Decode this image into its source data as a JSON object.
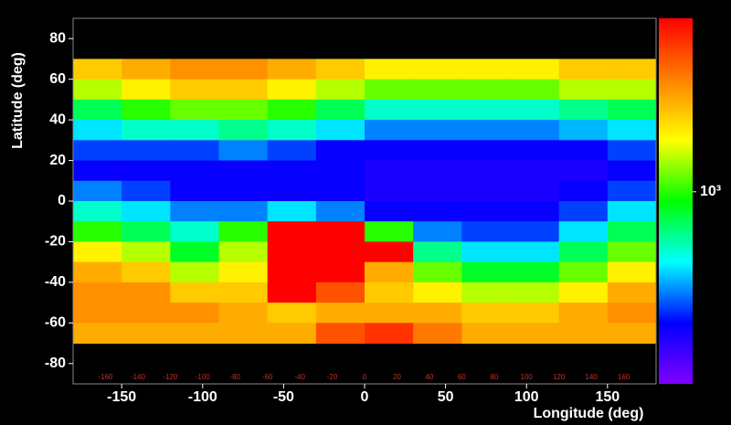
{
  "chart_data": {
    "type": "heatmap",
    "xlabel": "Longitude (deg)",
    "ylabel": "Latitude (deg)",
    "xlim": [
      -180,
      180
    ],
    "ylim": [
      -90,
      90
    ],
    "xticks": [
      -150,
      -100,
      -50,
      0,
      50,
      100,
      150
    ],
    "yticks": [
      -80,
      -60,
      -40,
      -20,
      0,
      20,
      40,
      60,
      80
    ],
    "minor_lon_labels": [
      -160,
      -140,
      -120,
      -100,
      -80,
      -60,
      -40,
      -20,
      0,
      20,
      40,
      60,
      80,
      100,
      120,
      140,
      160
    ],
    "cell_width": 30,
    "cell_height": 10,
    "x": [
      -165,
      -135,
      -105,
      -75,
      -45,
      -15,
      15,
      45,
      75,
      105,
      135,
      165
    ],
    "y": [
      65,
      55,
      45,
      35,
      25,
      15,
      5,
      -5,
      -15,
      -25,
      -35,
      -45,
      -55,
      -65
    ],
    "z": [
      [
        2500,
        3000,
        3500,
        3500,
        3000,
        2500,
        2000,
        2000,
        2000,
        2000,
        2500,
        2500
      ],
      [
        1500,
        2000,
        2500,
        2500,
        2000,
        1500,
        1200,
        1200,
        1200,
        1200,
        1500,
        1500
      ],
      [
        700,
        1000,
        1200,
        1200,
        1000,
        700,
        500,
        500,
        500,
        500,
        600,
        700
      ],
      [
        400,
        500,
        500,
        600,
        500,
        400,
        300,
        300,
        300,
        300,
        350,
        400
      ],
      [
        250,
        250,
        250,
        300,
        250,
        200,
        200,
        200,
        200,
        200,
        200,
        250
      ],
      [
        200,
        200,
        200,
        200,
        200,
        200,
        180,
        180,
        180,
        180,
        180,
        200
      ],
      [
        300,
        250,
        200,
        200,
        200,
        200,
        180,
        180,
        180,
        180,
        200,
        250
      ],
      [
        500,
        400,
        300,
        300,
        400,
        300,
        200,
        200,
        200,
        200,
        250,
        400
      ],
      [
        1000,
        700,
        500,
        1000,
        8000,
        8000,
        1000,
        300,
        250,
        250,
        400,
        700
      ],
      [
        2000,
        1500,
        800,
        1500,
        8000,
        8000,
        8000,
        600,
        400,
        400,
        700,
        1200
      ],
      [
        3000,
        2500,
        1500,
        2000,
        8000,
        8000,
        3000,
        1200,
        800,
        800,
        1200,
        2000
      ],
      [
        3500,
        3500,
        2500,
        2500,
        8000,
        5000,
        2500,
        2000,
        1500,
        1500,
        2000,
        3000
      ],
      [
        3500,
        3500,
        3500,
        3000,
        2500,
        3000,
        3000,
        3000,
        2500,
        2500,
        3000,
        3500
      ],
      [
        3000,
        3000,
        3000,
        3000,
        3000,
        5000,
        6000,
        4000,
        3000,
        3000,
        3000,
        3000
      ]
    ],
    "zlim": [
      100,
      8000
    ],
    "zscale": "log",
    "zticks": [
      {
        "value": 1000,
        "label": "10³"
      }
    ],
    "colormap": [
      "#8000ff",
      "#0000ff",
      "#00ffff",
      "#00ff00",
      "#ffff00",
      "#ff8000",
      "#ff0000"
    ]
  }
}
